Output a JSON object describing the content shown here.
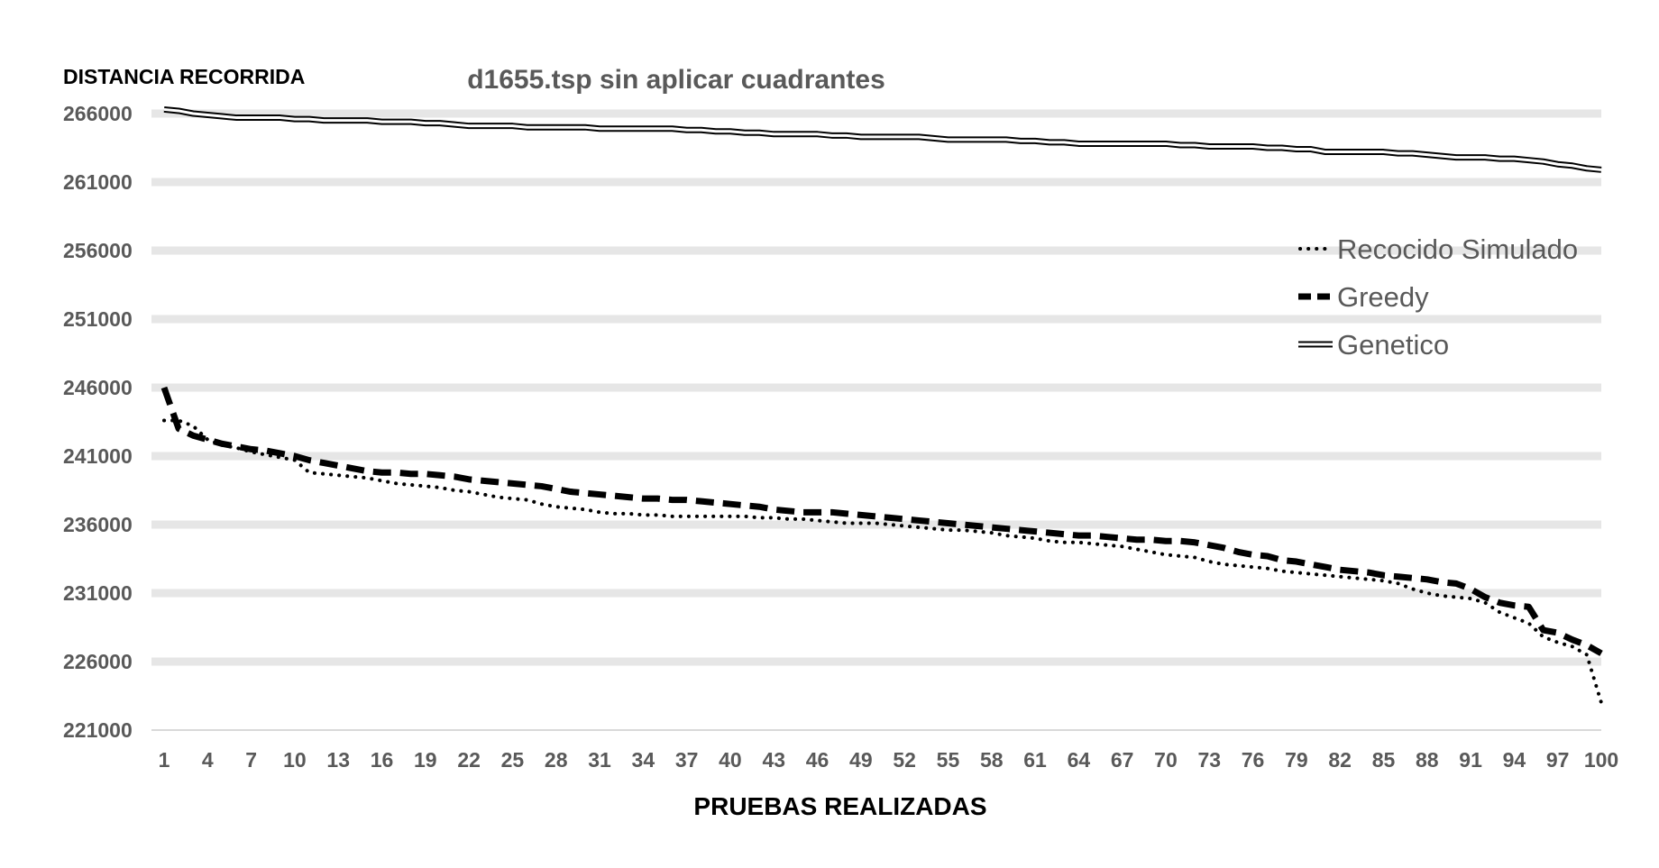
{
  "chart_data": {
    "type": "line",
    "title": "d1655.tsp sin aplicar cuadrantes",
    "ylabel": "DISTANCIA RECORRIDA",
    "xlabel": "PRUEBAS REALIZADAS",
    "ylim": [
      221000,
      266000
    ],
    "y_ticks": [
      266000,
      261000,
      256000,
      251000,
      246000,
      241000,
      236000,
      231000,
      226000,
      221000
    ],
    "x_range": [
      1,
      100
    ],
    "x_ticks": [
      1,
      4,
      7,
      10,
      13,
      16,
      19,
      22,
      25,
      28,
      31,
      34,
      37,
      40,
      43,
      46,
      49,
      52,
      55,
      58,
      61,
      64,
      67,
      70,
      73,
      76,
      79,
      82,
      85,
      88,
      91,
      94,
      97,
      100
    ],
    "grid": "horizontal",
    "legend_position": "right",
    "series": [
      {
        "name": "Recocido Simulado",
        "style": "dotted",
        "color": "#000000",
        "x": [
          1,
          2,
          3,
          4,
          5,
          6,
          7,
          8,
          9,
          10,
          11,
          12,
          13,
          14,
          15,
          16,
          17,
          18,
          19,
          20,
          21,
          22,
          23,
          24,
          25,
          26,
          27,
          28,
          29,
          30,
          31,
          32,
          33,
          34,
          35,
          36,
          37,
          38,
          39,
          40,
          41,
          42,
          43,
          44,
          45,
          46,
          47,
          48,
          49,
          50,
          51,
          52,
          53,
          54,
          55,
          56,
          57,
          58,
          59,
          60,
          61,
          62,
          63,
          64,
          65,
          66,
          67,
          68,
          69,
          70,
          71,
          72,
          73,
          74,
          75,
          76,
          77,
          78,
          79,
          80,
          81,
          82,
          83,
          84,
          85,
          86,
          87,
          88,
          89,
          90,
          91,
          92,
          93,
          94,
          95,
          96,
          97,
          98,
          99,
          100
        ],
        "values": [
          243600,
          243600,
          243200,
          242200,
          241800,
          241600,
          241300,
          241100,
          240900,
          240700,
          239800,
          239700,
          239600,
          239500,
          239400,
          239200,
          239000,
          238900,
          238800,
          238700,
          238500,
          238400,
          238200,
          238000,
          237900,
          237800,
          237500,
          237300,
          237200,
          237100,
          236900,
          236800,
          236800,
          236700,
          236700,
          236600,
          236600,
          236600,
          236600,
          236600,
          236600,
          236500,
          236500,
          236400,
          236400,
          236300,
          236200,
          236100,
          236100,
          236100,
          236000,
          235900,
          235800,
          235700,
          235600,
          235600,
          235500,
          235400,
          235200,
          235100,
          235000,
          234800,
          234700,
          234700,
          234600,
          234500,
          234400,
          234200,
          234000,
          233800,
          233700,
          233600,
          233300,
          233100,
          233000,
          232900,
          232800,
          232600,
          232500,
          232400,
          232300,
          232200,
          232100,
          232000,
          231900,
          231700,
          231300,
          231000,
          230800,
          230700,
          230600,
          230300,
          229600,
          229200,
          228800,
          227800,
          227400,
          227100,
          226500,
          223000
        ]
      },
      {
        "name": "Greedy",
        "style": "dashed",
        "color": "#000000",
        "x": [
          1,
          2,
          3,
          4,
          5,
          6,
          7,
          8,
          9,
          10,
          11,
          12,
          13,
          14,
          15,
          16,
          17,
          18,
          19,
          20,
          21,
          22,
          23,
          24,
          25,
          26,
          27,
          28,
          29,
          30,
          31,
          32,
          33,
          34,
          35,
          36,
          37,
          38,
          39,
          40,
          41,
          42,
          43,
          44,
          45,
          46,
          47,
          48,
          49,
          50,
          51,
          52,
          53,
          54,
          55,
          56,
          57,
          58,
          59,
          60,
          61,
          62,
          63,
          64,
          65,
          66,
          67,
          68,
          69,
          70,
          71,
          72,
          73,
          74,
          75,
          76,
          77,
          78,
          79,
          80,
          81,
          82,
          83,
          84,
          85,
          86,
          87,
          88,
          89,
          90,
          91,
          92,
          93,
          94,
          95,
          96,
          97,
          98,
          99,
          100
        ],
        "values": [
          246000,
          243000,
          242500,
          242200,
          241900,
          241700,
          241500,
          241400,
          241200,
          241000,
          240700,
          240500,
          240300,
          240100,
          239900,
          239800,
          239800,
          239700,
          239700,
          239600,
          239500,
          239300,
          239200,
          239100,
          239000,
          238900,
          238800,
          238600,
          238400,
          238300,
          238200,
          238100,
          238000,
          237900,
          237900,
          237800,
          237800,
          237700,
          237600,
          237500,
          237400,
          237300,
          237100,
          237000,
          236900,
          236900,
          236900,
          236800,
          236700,
          236600,
          236500,
          236400,
          236300,
          236200,
          236100,
          236000,
          235900,
          235800,
          235700,
          235600,
          235500,
          235400,
          235300,
          235200,
          235200,
          235100,
          235000,
          234900,
          234900,
          234800,
          234800,
          234700,
          234500,
          234300,
          234000,
          233800,
          233700,
          233400,
          233300,
          233100,
          232900,
          232700,
          232600,
          232500,
          232300,
          232200,
          232100,
          232000,
          231800,
          231700,
          231300,
          230700,
          230300,
          230100,
          230000,
          228300,
          228100,
          227600,
          227200,
          226600
        ]
      },
      {
        "name": "Genetico",
        "style": "double",
        "color": "#000000",
        "x": [
          1,
          2,
          3,
          4,
          5,
          6,
          7,
          8,
          9,
          10,
          11,
          12,
          13,
          14,
          15,
          16,
          17,
          18,
          19,
          20,
          21,
          22,
          23,
          24,
          25,
          26,
          27,
          28,
          29,
          30,
          31,
          32,
          33,
          34,
          35,
          36,
          37,
          38,
          39,
          40,
          41,
          42,
          43,
          44,
          45,
          46,
          47,
          48,
          49,
          50,
          51,
          52,
          53,
          54,
          55,
          56,
          57,
          58,
          59,
          60,
          61,
          62,
          63,
          64,
          65,
          66,
          67,
          68,
          69,
          70,
          71,
          72,
          73,
          74,
          75,
          76,
          77,
          78,
          79,
          80,
          81,
          82,
          83,
          84,
          85,
          86,
          87,
          88,
          89,
          90,
          91,
          92,
          93,
          94,
          95,
          96,
          97,
          98,
          99,
          100
        ],
        "values": [
          266300,
          266200,
          266000,
          265900,
          265800,
          265700,
          265700,
          265700,
          265700,
          265600,
          265600,
          265500,
          265500,
          265500,
          265500,
          265400,
          265400,
          265400,
          265300,
          265300,
          265200,
          265100,
          265100,
          265100,
          265100,
          265000,
          265000,
          265000,
          265000,
          265000,
          264900,
          264900,
          264900,
          264900,
          264900,
          264900,
          264800,
          264800,
          264700,
          264700,
          264600,
          264600,
          264500,
          264500,
          264500,
          264500,
          264400,
          264400,
          264300,
          264300,
          264300,
          264300,
          264300,
          264200,
          264100,
          264100,
          264100,
          264100,
          264100,
          264000,
          264000,
          263900,
          263900,
          263800,
          263800,
          263800,
          263800,
          263800,
          263800,
          263800,
          263700,
          263700,
          263600,
          263600,
          263600,
          263600,
          263500,
          263500,
          263400,
          263400,
          263200,
          263200,
          263200,
          263200,
          263200,
          263100,
          263100,
          263000,
          262900,
          262800,
          262800,
          262800,
          262700,
          262700,
          262600,
          262500,
          262300,
          262200,
          262000,
          261900
        ]
      }
    ]
  }
}
